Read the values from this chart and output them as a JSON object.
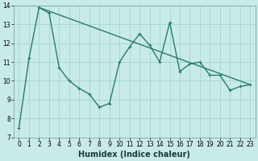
{
  "xlabel": "Humidex (Indice chaleur)",
  "background_color": "#c8ebe8",
  "grid_color": "#a8d8d4",
  "line_color": "#2a7a6a",
  "x_data": [
    0,
    1,
    2,
    3,
    4,
    5,
    6,
    7,
    8,
    9,
    10,
    11,
    12,
    13,
    14,
    15,
    16,
    17,
    18,
    19,
    20,
    21,
    22,
    23
  ],
  "y_main": [
    7.5,
    11.2,
    13.9,
    13.6,
    10.7,
    10.0,
    9.6,
    9.3,
    8.6,
    8.8,
    11.0,
    11.8,
    12.5,
    11.9,
    11.0,
    13.1,
    10.5,
    10.9,
    11.0,
    10.3,
    10.3,
    9.5,
    9.7,
    9.8
  ],
  "trend_x": [
    2,
    23
  ],
  "trend_y": [
    13.9,
    9.8
  ],
  "xlim": [
    -0.5,
    23.5
  ],
  "ylim": [
    7,
    14
  ],
  "yticks": [
    7,
    8,
    9,
    10,
    11,
    12,
    13,
    14
  ],
  "xticks": [
    0,
    1,
    2,
    3,
    4,
    5,
    6,
    7,
    8,
    9,
    10,
    11,
    12,
    13,
    14,
    15,
    16,
    17,
    18,
    19,
    20,
    21,
    22,
    23
  ],
  "tick_fontsize": 5.5,
  "xlabel_fontsize": 7,
  "linewidth": 1.0,
  "marker_size": 3.0
}
